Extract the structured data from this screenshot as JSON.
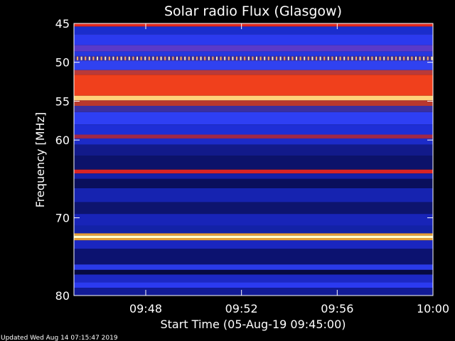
{
  "chart_data": {
    "type": "heatmap",
    "title": "Solar radio Flux (Glasgow)",
    "xlabel": "Start Time (05-Aug-19 09:45:00)",
    "ylabel": "Frequency [MHz]",
    "x_range_minutes": [
      0,
      15
    ],
    "x_ticks": [
      {
        "minute": 3,
        "label": "09:48"
      },
      {
        "minute": 7,
        "label": "09:52"
      },
      {
        "minute": 11,
        "label": "09:56"
      },
      {
        "minute": 15,
        "label": "10:00"
      }
    ],
    "ylim_mhz": [
      45,
      80
    ],
    "y_ticks": [
      {
        "mhz": 45,
        "label": "45"
      },
      {
        "mhz": 50,
        "label": "50"
      },
      {
        "mhz": 55,
        "label": "55"
      },
      {
        "mhz": 60,
        "label": "60"
      },
      {
        "mhz": 70,
        "label": "70"
      },
      {
        "mhz": 80,
        "label": "80"
      }
    ],
    "bands": [
      {
        "from_mhz": 45.0,
        "to_mhz": 45.4,
        "color": "#e0281e"
      },
      {
        "from_mhz": 45.4,
        "to_mhz": 46.4,
        "color": "#1a2dcc"
      },
      {
        "from_mhz": 46.4,
        "to_mhz": 47.8,
        "color": "#2b3aee"
      },
      {
        "from_mhz": 47.8,
        "to_mhz": 48.6,
        "color": "#5a3ac8"
      },
      {
        "from_mhz": 48.6,
        "to_mhz": 49.2,
        "color": "#2637e0"
      },
      {
        "from_mhz": 49.2,
        "to_mhz": 49.8,
        "color": "#3a2f9a"
      },
      {
        "from_mhz": 49.8,
        "to_mhz": 51.0,
        "color": "#3042f0"
      },
      {
        "from_mhz": 51.0,
        "to_mhz": 51.6,
        "color": "#b83a3a"
      },
      {
        "from_mhz": 51.6,
        "to_mhz": 54.3,
        "color": "#f0401c"
      },
      {
        "from_mhz": 54.3,
        "to_mhz": 54.9,
        "color": "#ffd27a"
      },
      {
        "from_mhz": 54.9,
        "to_mhz": 55.6,
        "color": "#b8382e"
      },
      {
        "from_mhz": 55.6,
        "to_mhz": 56.4,
        "color": "#3a2fa0"
      },
      {
        "from_mhz": 56.4,
        "to_mhz": 58.0,
        "color": "#2e3ff4"
      },
      {
        "from_mhz": 58.0,
        "to_mhz": 59.3,
        "color": "#1e2ed6"
      },
      {
        "from_mhz": 59.3,
        "to_mhz": 59.8,
        "color": "#a02848"
      },
      {
        "from_mhz": 59.8,
        "to_mhz": 60.6,
        "color": "#1c2bc8"
      },
      {
        "from_mhz": 60.6,
        "to_mhz": 62.0,
        "color": "#121a8a"
      },
      {
        "from_mhz": 62.0,
        "to_mhz": 63.8,
        "color": "#0c126a"
      },
      {
        "from_mhz": 63.8,
        "to_mhz": 64.3,
        "color": "#d82424"
      },
      {
        "from_mhz": 64.3,
        "to_mhz": 65.0,
        "color": "#1420a8"
      },
      {
        "from_mhz": 65.0,
        "to_mhz": 66.2,
        "color": "#0a0f5c"
      },
      {
        "from_mhz": 66.2,
        "to_mhz": 68.0,
        "color": "#1623b0"
      },
      {
        "from_mhz": 68.0,
        "to_mhz": 69.5,
        "color": "#0d146e"
      },
      {
        "from_mhz": 69.5,
        "to_mhz": 71.0,
        "color": "#1824b8"
      },
      {
        "from_mhz": 71.0,
        "to_mhz": 72.0,
        "color": "#1322a6"
      },
      {
        "from_mhz": 72.0,
        "to_mhz": 72.3,
        "color": "#e8a038"
      },
      {
        "from_mhz": 72.3,
        "to_mhz": 72.6,
        "color": "#ffffd0"
      },
      {
        "from_mhz": 72.6,
        "to_mhz": 72.9,
        "color": "#e8a038"
      },
      {
        "from_mhz": 72.9,
        "to_mhz": 74.0,
        "color": "#1a26c0"
      },
      {
        "from_mhz": 74.0,
        "to_mhz": 76.0,
        "color": "#0c1270"
      },
      {
        "from_mhz": 76.0,
        "to_mhz": 76.7,
        "color": "#2a3ae8"
      },
      {
        "from_mhz": 76.7,
        "to_mhz": 77.3,
        "color": "#060a40"
      },
      {
        "from_mhz": 77.3,
        "to_mhz": 78.3,
        "color": "#1c28c4"
      },
      {
        "from_mhz": 78.3,
        "to_mhz": 79.0,
        "color": "#2b3af0"
      },
      {
        "from_mhz": 79.0,
        "to_mhz": 80.0,
        "color": "#121b96"
      }
    ],
    "dotted_band_mhz": 49.5,
    "dotted_band_colors": [
      "#ffb060",
      "#ffe8b0"
    ]
  },
  "footer": {
    "updated_text": "Updated Wed Aug 14 07:15:47 2019"
  }
}
